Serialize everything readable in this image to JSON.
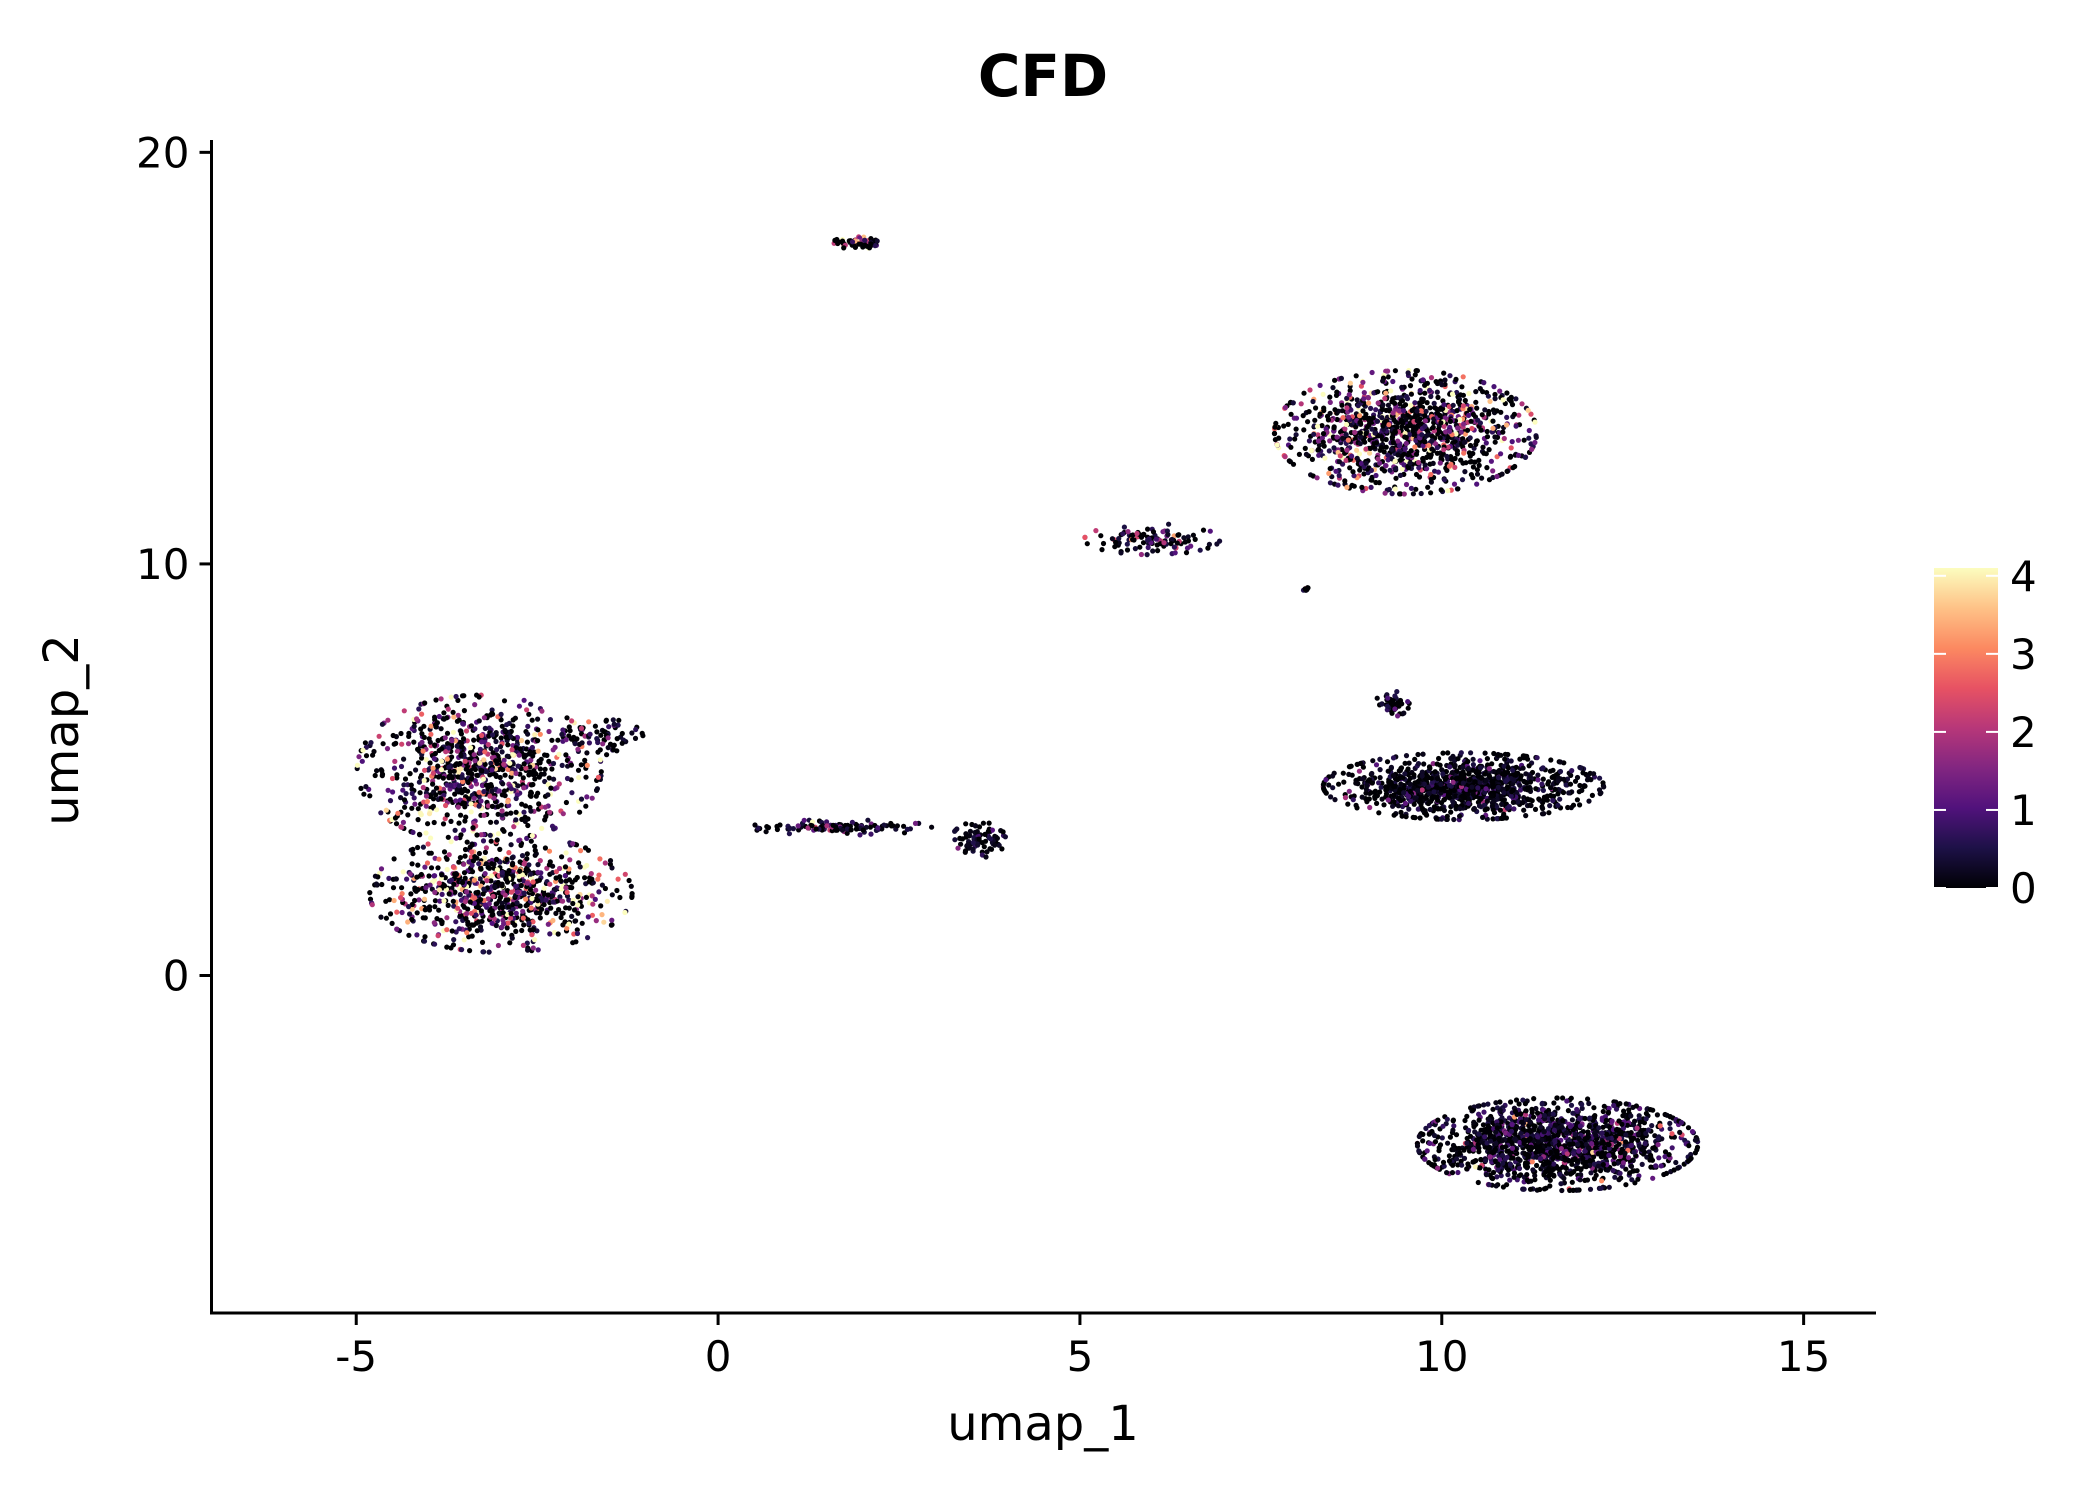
{
  "chart_data": {
    "type": "scatter",
    "title": "CFD",
    "xlabel": "umap_1",
    "ylabel": "umap_2",
    "xlim": [
      -7.0,
      16.0
    ],
    "ylim": [
      -8.2,
      20.3
    ],
    "x_ticks": [
      -5,
      0,
      5,
      10,
      15
    ],
    "x_tick_labels": [
      "-5",
      "0",
      "5",
      "10",
      "15"
    ],
    "y_ticks": [
      0,
      10,
      20
    ],
    "y_tick_labels": [
      "0",
      "10",
      "20"
    ],
    "grid": false,
    "legend": {
      "type": "colorbar",
      "position": "right",
      "min": 0,
      "max": 4.1,
      "ticks": [
        0,
        1,
        2,
        3,
        4
      ],
      "tick_labels": [
        "0",
        "1",
        "2",
        "3",
        "4"
      ],
      "colormap": "magma",
      "colors": [
        "#000004",
        "#1d1147",
        "#51127c",
        "#822681",
        "#b73779",
        "#e75263",
        "#fc8961",
        "#fec287",
        "#fcfdbf"
      ]
    },
    "clusters": [
      {
        "name": "left-upper-lobe",
        "center": [
          -3.3,
          5.0
        ],
        "spread": [
          1.35,
          1.45
        ],
        "n": 900,
        "mean_expr": 1.5
      },
      {
        "name": "left-lower-lobe",
        "center": [
          -3.0,
          2.0
        ],
        "spread": [
          1.45,
          1.15
        ],
        "n": 850,
        "mean_expr": 1.6
      },
      {
        "name": "left-upper-extension",
        "center": [
          -1.6,
          5.8
        ],
        "spread": [
          0.45,
          0.35
        ],
        "n": 70,
        "mean_expr": 0.8
      },
      {
        "name": "bridge-strand",
        "center": [
          1.7,
          3.6
        ],
        "spread": [
          1.0,
          0.15
        ],
        "n": 120,
        "mean_expr": 0.6
      },
      {
        "name": "small-cross-cluster",
        "center": [
          3.6,
          3.3
        ],
        "spread": [
          0.3,
          0.35
        ],
        "n": 80,
        "mean_expr": 0.3
      },
      {
        "name": "top-island",
        "center": [
          1.9,
          17.8
        ],
        "spread": [
          0.25,
          0.12
        ],
        "n": 70,
        "mean_expr": 1.9
      },
      {
        "name": "upper-right-mass",
        "center": [
          9.5,
          13.2
        ],
        "spread": [
          1.45,
          1.2
        ],
        "n": 1150,
        "mean_expr": 1.4
      },
      {
        "name": "upper-right-tail",
        "center": [
          6.0,
          10.6
        ],
        "spread": [
          0.75,
          0.3
        ],
        "n": 110,
        "mean_expr": 0.9
      },
      {
        "name": "upper-right-dot",
        "center": [
          8.15,
          9.4
        ],
        "spread": [
          0.06,
          0.06
        ],
        "n": 8,
        "mean_expr": 0.7
      },
      {
        "name": "middle-right-mass",
        "center": [
          10.3,
          4.6
        ],
        "spread": [
          1.55,
          0.65
        ],
        "n": 1100,
        "mean_expr": 0.35
      },
      {
        "name": "middle-right-knob",
        "center": [
          9.3,
          6.6
        ],
        "spread": [
          0.2,
          0.25
        ],
        "n": 50,
        "mean_expr": 0.6
      },
      {
        "name": "lower-right-mass",
        "center": [
          11.6,
          -4.1
        ],
        "spread": [
          1.55,
          0.9
        ],
        "n": 1500,
        "mean_expr": 0.55
      }
    ]
  }
}
